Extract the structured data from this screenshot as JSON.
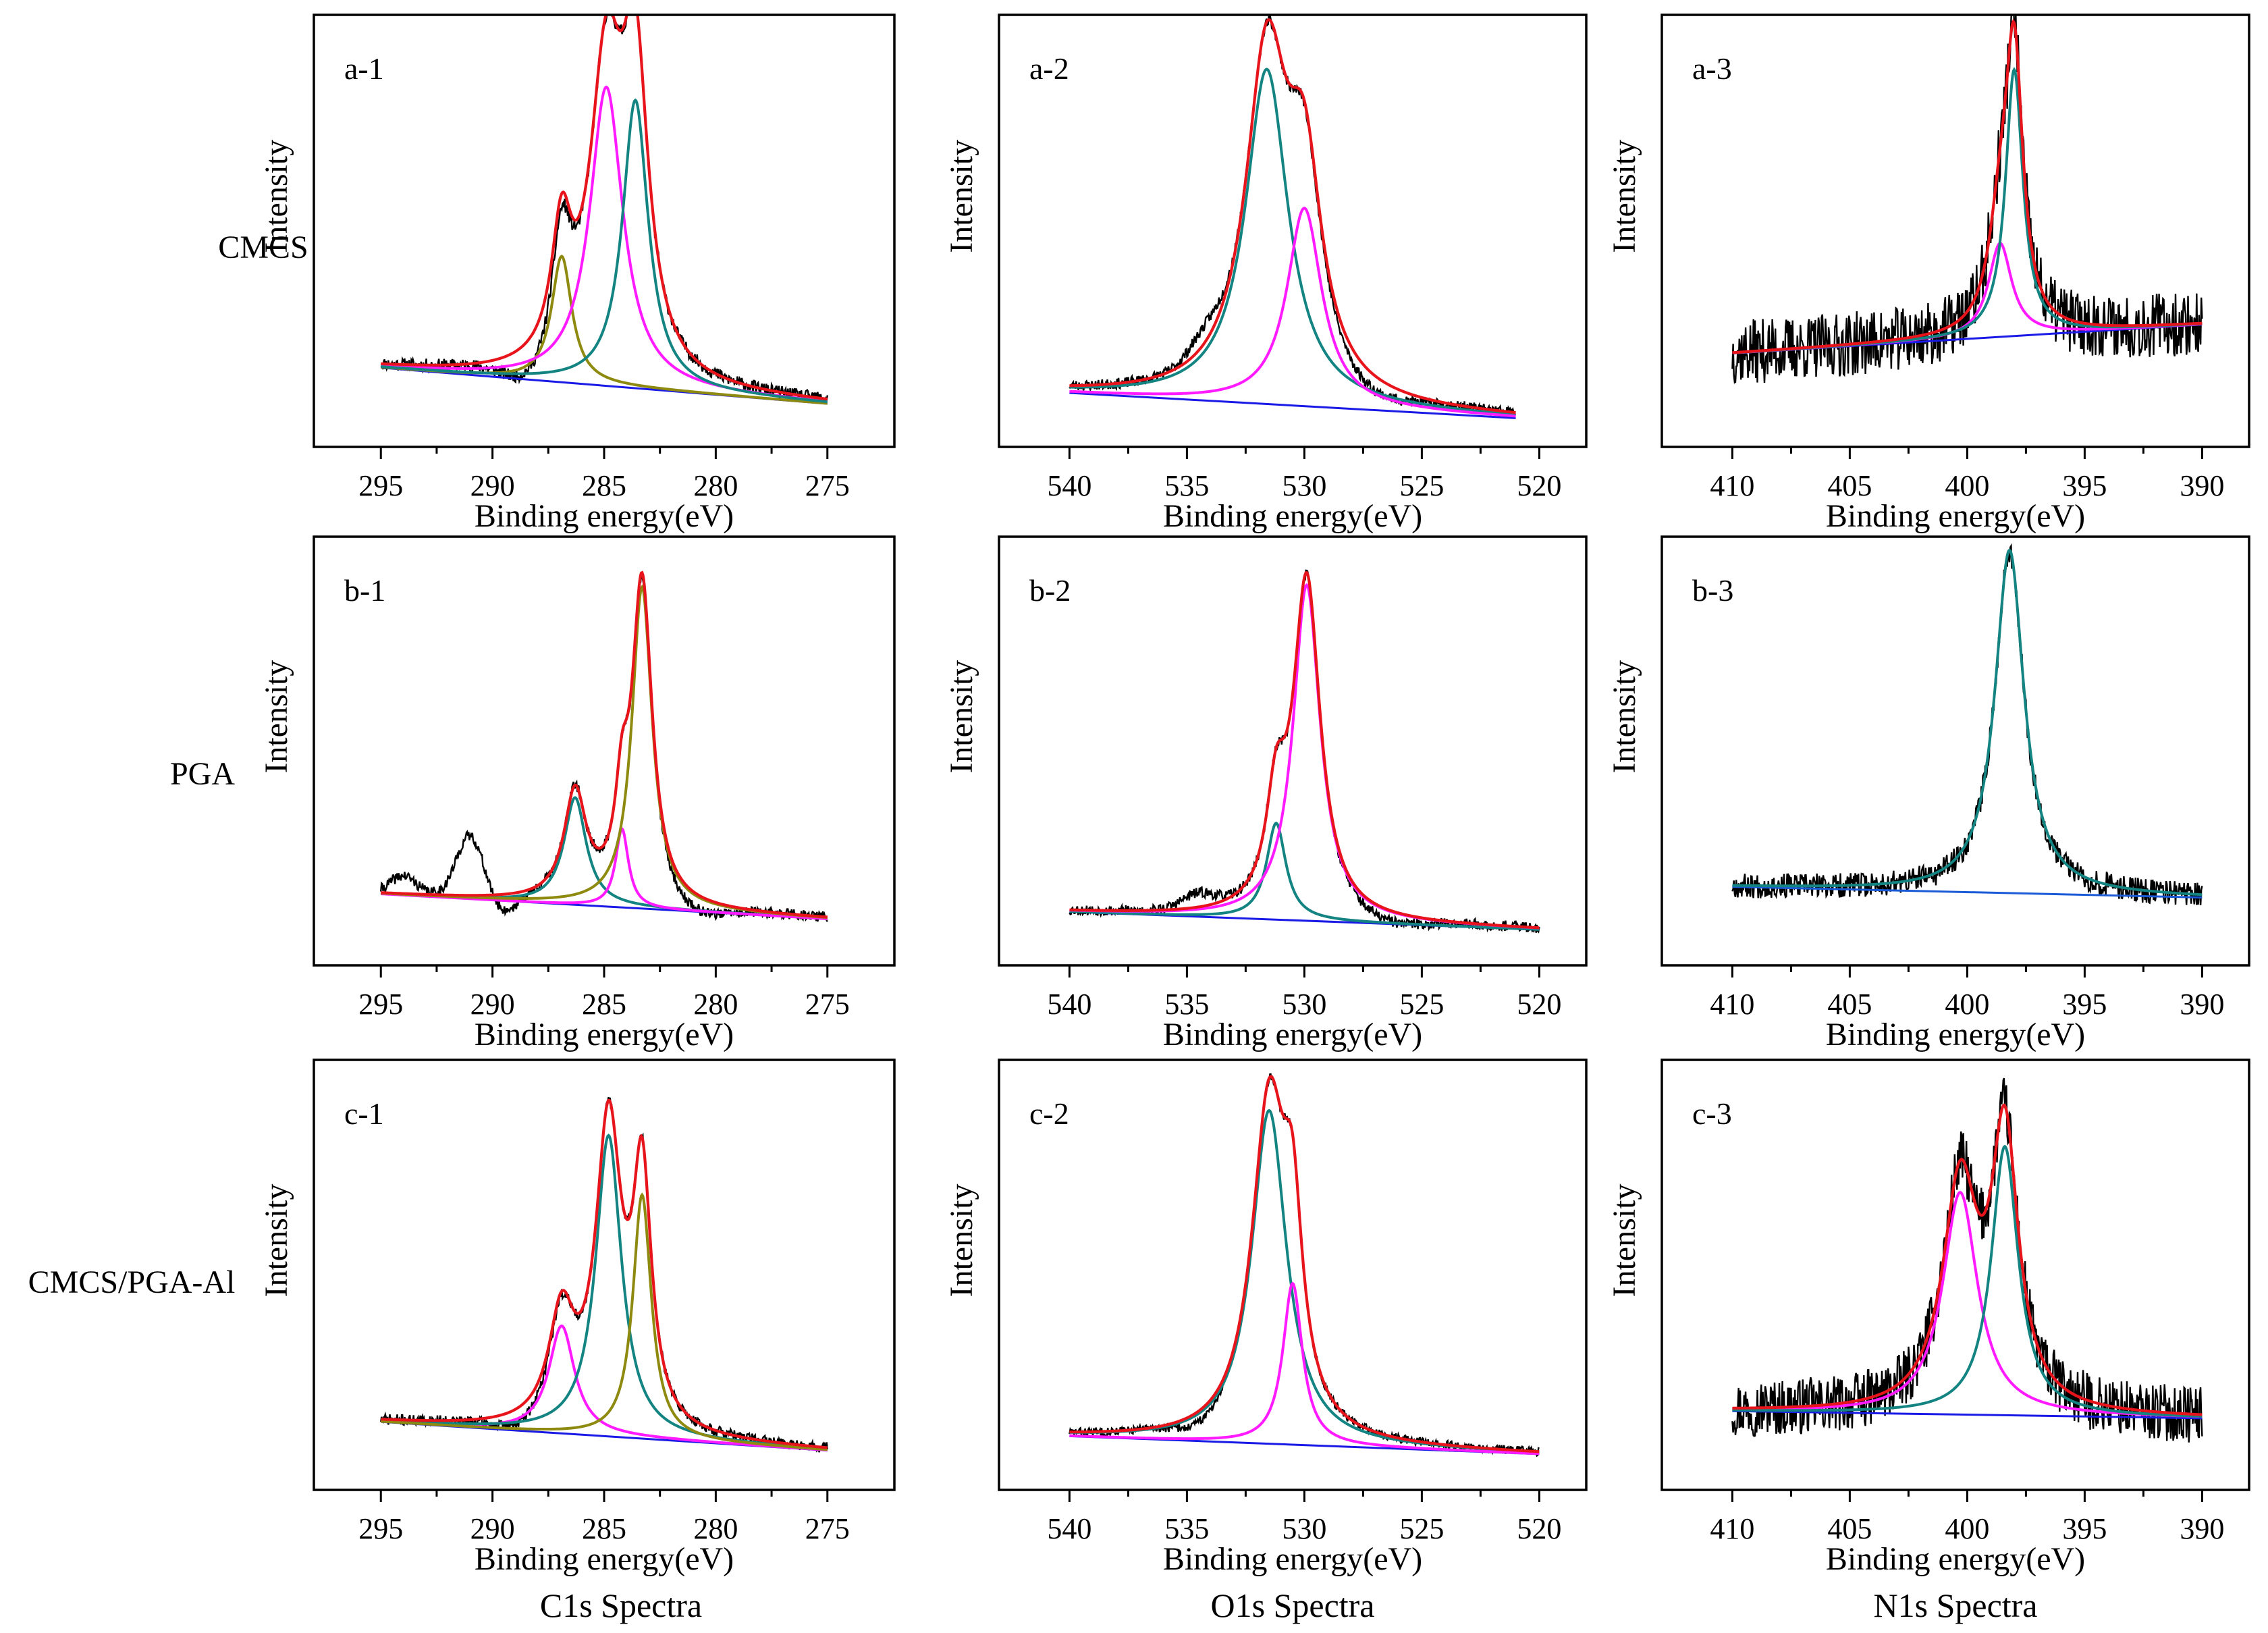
{
  "figure": {
    "row_labels": [
      "CMCS",
      "PGA",
      "CMCS/PGA-Al"
    ],
    "column_labels": [
      "C1s Spectra",
      "O1s Spectra",
      "N1s Spectra"
    ]
  },
  "colors": {
    "raw": "#000000",
    "envelope": "#e8141c",
    "magenta": "#ff1aff",
    "teal": "#138482",
    "olive": "#8e8a10",
    "baseline": "#1a1ae6",
    "baseline_b3": "#1a5ad6"
  },
  "chart_data": [
    {
      "id": "a-1",
      "panel_label": "a-1",
      "row": 0,
      "col": 0,
      "type": "line",
      "xlabel": "Binding energy(eV)",
      "ylabel": "Intensity",
      "xlim": [
        298,
        272
      ],
      "ylim": [
        0,
        1.2
      ],
      "xticks": [
        295,
        290,
        285,
        280,
        275
      ],
      "raw_range": [
        295,
        275
      ],
      "baseline": [
        0.22,
        0.12
      ],
      "noise": 0.018,
      "noise_seed": 11,
      "bumps": [
        {
          "c": 288.3,
          "a": -0.08,
          "w": 1.6
        }
      ],
      "components": [
        {
          "name": "peak-1",
          "color": "olive",
          "center": 286.9,
          "amp": 0.35,
          "width": 0.55
        },
        {
          "name": "peak-2",
          "color": "magenta",
          "center": 284.9,
          "amp": 0.83,
          "width": 0.9
        },
        {
          "name": "peak-3",
          "color": "teal",
          "center": 283.6,
          "amp": 0.8,
          "width": 0.7
        }
      ]
    },
    {
      "id": "a-2",
      "panel_label": "a-2",
      "row": 0,
      "col": 1,
      "type": "line",
      "xlabel": "Binding energy(eV)",
      "ylabel": "Intensity",
      "xlim": [
        543,
        518
      ],
      "ylim": [
        0,
        1.2
      ],
      "xticks": [
        540,
        535,
        530,
        525,
        520
      ],
      "raw_range": [
        540,
        521
      ],
      "baseline": [
        0.15,
        0.08
      ],
      "noise": 0.015,
      "noise_seed": 23,
      "bumps": [
        {
          "c": 534.2,
          "a": 0.05,
          "w": 1.0
        },
        {
          "c": 527.3,
          "a": -0.04,
          "w": 2.2
        }
      ],
      "components": [
        {
          "name": "peak-1",
          "color": "teal",
          "center": 531.6,
          "amp": 0.93,
          "width": 1.1
        },
        {
          "name": "peak-2",
          "color": "magenta",
          "center": 530.0,
          "amp": 0.55,
          "width": 0.9
        }
      ]
    },
    {
      "id": "a-3",
      "panel_label": "a-3",
      "row": 0,
      "col": 2,
      "type": "line",
      "xlabel": "Binding energy(eV)",
      "ylabel": "Intensity",
      "xlim": [
        413,
        388
      ],
      "ylim": [
        0,
        1.2
      ],
      "xticks": [
        410,
        405,
        400,
        395,
        390
      ],
      "raw_range": [
        410,
        390
      ],
      "baseline": [
        0.26,
        0.34
      ],
      "noise": 0.09,
      "noise_seed": 37,
      "bumps": [],
      "components": [
        {
          "name": "peak-1",
          "color": "magenta",
          "center": 398.6,
          "amp": 0.26,
          "width": 0.6
        },
        {
          "name": "peak-2",
          "color": "teal",
          "center": 398.0,
          "amp": 0.74,
          "width": 0.45
        }
      ]
    },
    {
      "id": "b-1",
      "panel_label": "b-1",
      "row": 1,
      "col": 0,
      "type": "line",
      "xlabel": "Binding energy(eV)",
      "ylabel": "Intensity",
      "xlim": [
        298,
        272
      ],
      "ylim": [
        0,
        1.2
      ],
      "xticks": [
        295,
        290,
        285,
        280,
        275
      ],
      "raw_range": [
        295,
        275
      ],
      "baseline": [
        0.2,
        0.13
      ],
      "noise": 0.015,
      "noise_seed": 41,
      "bumps": [
        {
          "c": 294.0,
          "a": 0.05,
          "w": 0.8
        },
        {
          "c": 291.0,
          "a": 0.17,
          "w": 0.85
        },
        {
          "c": 289.5,
          "a": -0.05,
          "w": 0.9
        },
        {
          "c": 281.0,
          "a": -0.04,
          "w": 2.0
        }
      ],
      "components": [
        {
          "name": "peak-1",
          "color": "teal",
          "center": 286.3,
          "amp": 0.3,
          "width": 0.6
        },
        {
          "name": "peak-2",
          "color": "magenta",
          "center": 284.2,
          "amp": 0.22,
          "width": 0.35
        },
        {
          "name": "peak-3",
          "color": "olive",
          "center": 283.3,
          "amp": 0.9,
          "width": 0.55
        }
      ]
    },
    {
      "id": "b-2",
      "panel_label": "b-2",
      "row": 1,
      "col": 1,
      "type": "line",
      "xlabel": "Binding energy(eV)",
      "ylabel": "Intensity",
      "xlim": [
        543,
        518
      ],
      "ylim": [
        0,
        1.2
      ],
      "xticks": [
        540,
        535,
        530,
        525,
        520
      ],
      "raw_range": [
        540,
        520
      ],
      "baseline": [
        0.15,
        0.1
      ],
      "noise": 0.015,
      "noise_seed": 53,
      "bumps": [
        {
          "c": 534.5,
          "a": 0.04,
          "w": 1.0
        },
        {
          "c": 526.5,
          "a": -0.03,
          "w": 2.0
        }
      ],
      "components": [
        {
          "name": "peak-1",
          "color": "teal",
          "center": 531.2,
          "amp": 0.27,
          "width": 0.5
        },
        {
          "name": "peak-2",
          "color": "magenta",
          "center": 529.9,
          "amp": 0.94,
          "width": 0.7
        }
      ]
    },
    {
      "id": "b-3",
      "panel_label": "b-3",
      "row": 1,
      "col": 2,
      "type": "line",
      "xlabel": "Binding energy(eV)",
      "ylabel": "Intensity",
      "xlim": [
        413,
        388
      ],
      "ylim": [
        0,
        1.2
      ],
      "xticks": [
        410,
        405,
        400,
        395,
        390
      ],
      "raw_range": [
        410,
        390
      ],
      "baseline": [
        0.22,
        0.19
      ],
      "noise": 0.035,
      "noise_seed": 67,
      "bumps": [],
      "components": [
        {
          "name": "peak-1",
          "color": "teal",
          "center": 398.2,
          "amp": 0.96,
          "width": 0.75
        }
      ]
    },
    {
      "id": "c-1",
      "panel_label": "c-1",
      "row": 2,
      "col": 0,
      "type": "line",
      "xlabel": "Binding energy(eV)",
      "ylabel": "Intensity",
      "xlim": [
        298,
        272
      ],
      "ylim": [
        0,
        1.2
      ],
      "xticks": [
        295,
        290,
        285,
        280,
        275
      ],
      "raw_range": [
        295,
        275
      ],
      "baseline": [
        0.19,
        0.11
      ],
      "noise": 0.015,
      "noise_seed": 71,
      "bumps": [
        {
          "c": 288.8,
          "a": -0.04,
          "w": 1.5
        }
      ],
      "components": [
        {
          "name": "peak-1",
          "color": "magenta",
          "center": 286.9,
          "amp": 0.3,
          "width": 0.7
        },
        {
          "name": "peak-2",
          "color": "teal",
          "center": 284.8,
          "amp": 0.84,
          "width": 0.7
        },
        {
          "name": "peak-3",
          "color": "olive",
          "center": 283.3,
          "amp": 0.68,
          "width": 0.5
        }
      ]
    },
    {
      "id": "c-2",
      "panel_label": "c-2",
      "row": 2,
      "col": 1,
      "type": "line",
      "xlabel": "Binding energy(eV)",
      "ylabel": "Intensity",
      "xlim": [
        543,
        518
      ],
      "ylim": [
        0,
        1.2
      ],
      "xticks": [
        540,
        535,
        530,
        525,
        520
      ],
      "raw_range": [
        540,
        520
      ],
      "baseline": [
        0.15,
        0.1
      ],
      "noise": 0.012,
      "noise_seed": 83,
      "bumps": [
        {
          "c": 534.5,
          "a": -0.03,
          "w": 1.2
        }
      ],
      "components": [
        {
          "name": "peak-1",
          "color": "teal",
          "center": 531.5,
          "amp": 0.93,
          "width": 0.9
        },
        {
          "name": "peak-2",
          "color": "magenta",
          "center": 530.5,
          "amp": 0.45,
          "width": 0.5
        }
      ]
    },
    {
      "id": "c-3",
      "panel_label": "c-3",
      "row": 2,
      "col": 2,
      "type": "line",
      "xlabel": "Binding energy(eV)",
      "ylabel": "Intensity",
      "xlim": [
        413,
        388
      ],
      "ylim": [
        0,
        1.2
      ],
      "xticks": [
        410,
        405,
        400,
        395,
        390
      ],
      "raw_range": [
        410,
        390
      ],
      "baseline": [
        0.22,
        0.2
      ],
      "noise": 0.08,
      "noise_seed": 97,
      "bumps": [],
      "components": [
        {
          "name": "peak-1",
          "color": "magenta",
          "center": 400.3,
          "amp": 0.62,
          "width": 0.9
        },
        {
          "name": "peak-2",
          "color": "teal",
          "center": 398.4,
          "amp": 0.75,
          "width": 0.7
        }
      ]
    }
  ]
}
